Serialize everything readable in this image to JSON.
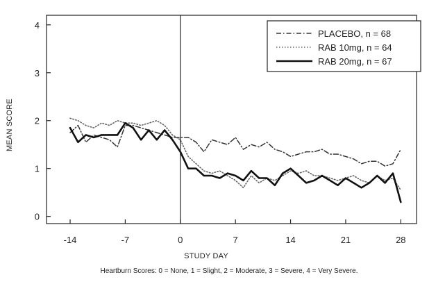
{
  "chart_data": {
    "type": "line",
    "title": "",
    "xlabel": "STUDY DAY",
    "ylabel": "MEAN SCORE",
    "xlim": [
      -17,
      30
    ],
    "ylim": [
      -0.15,
      4.2
    ],
    "xticks": [
      -14,
      -7,
      0,
      7,
      14,
      21,
      28
    ],
    "yticks": [
      0,
      1,
      2,
      3,
      4
    ],
    "reference_line_x": 0,
    "legend_position": "top-right",
    "footnote": "Heartburn Scores: 0 = None, 1 = Slight, 2 = Moderate, 3 = Severe, 4 = Very Severe.",
    "series": [
      {
        "name": "PLACEBO, n = 68",
        "line_style": "dash-dot",
        "color": "#333333",
        "x": [
          -14,
          -13,
          -12,
          -11,
          -10,
          -9,
          -8,
          -7,
          -6,
          -5,
          -4,
          -3,
          -2,
          -1,
          0,
          1,
          2,
          3,
          4,
          5,
          6,
          7,
          8,
          9,
          10,
          11,
          12,
          13,
          14,
          15,
          16,
          17,
          18,
          19,
          20,
          21,
          22,
          23,
          24,
          25,
          26,
          27,
          28
        ],
        "y": [
          1.75,
          1.9,
          1.55,
          1.7,
          1.65,
          1.6,
          1.45,
          1.9,
          1.9,
          1.85,
          1.8,
          1.75,
          1.7,
          1.65,
          1.65,
          1.65,
          1.55,
          1.35,
          1.6,
          1.55,
          1.5,
          1.65,
          1.4,
          1.5,
          1.45,
          1.55,
          1.4,
          1.35,
          1.25,
          1.3,
          1.35,
          1.35,
          1.4,
          1.3,
          1.3,
          1.25,
          1.2,
          1.1,
          1.15,
          1.15,
          1.05,
          1.1,
          1.4
        ]
      },
      {
        "name": "RAB 10mg, n = 64",
        "line_style": "dotted",
        "color": "#666666",
        "x": [
          -14,
          -13,
          -12,
          -11,
          -10,
          -9,
          -8,
          -7,
          -6,
          -5,
          -4,
          -3,
          -2,
          -1,
          0,
          1,
          2,
          3,
          4,
          5,
          6,
          7,
          8,
          9,
          10,
          11,
          12,
          13,
          14,
          15,
          16,
          17,
          18,
          19,
          20,
          21,
          22,
          23,
          24,
          25,
          26,
          27,
          28
        ],
        "y": [
          2.05,
          2.0,
          1.9,
          1.85,
          1.95,
          1.9,
          2.0,
          1.95,
          1.95,
          1.9,
          1.95,
          2.0,
          1.9,
          1.7,
          1.6,
          1.25,
          1.1,
          0.95,
          0.9,
          0.95,
          0.85,
          0.75,
          0.6,
          0.85,
          0.7,
          0.8,
          0.75,
          0.85,
          0.95,
          0.9,
          0.95,
          0.85,
          0.85,
          0.8,
          0.75,
          0.8,
          0.85,
          0.75,
          0.7,
          0.85,
          0.75,
          0.8,
          0.55
        ]
      },
      {
        "name": "RAB 20mg, n = 67",
        "line_style": "solid",
        "color": "#111111",
        "x": [
          -14,
          -13,
          -12,
          -11,
          -10,
          -9,
          -8,
          -7,
          -6,
          -5,
          -4,
          -3,
          -2,
          -1,
          0,
          1,
          2,
          3,
          4,
          5,
          6,
          7,
          8,
          9,
          10,
          11,
          12,
          13,
          14,
          15,
          16,
          17,
          18,
          19,
          20,
          21,
          22,
          23,
          24,
          25,
          26,
          27,
          28
        ],
        "y": [
          1.85,
          1.55,
          1.7,
          1.65,
          1.7,
          1.7,
          1.7,
          1.95,
          1.85,
          1.6,
          1.8,
          1.6,
          1.8,
          1.6,
          1.35,
          1.0,
          1.0,
          0.85,
          0.85,
          0.8,
          0.9,
          0.85,
          0.75,
          0.95,
          0.8,
          0.8,
          0.65,
          0.9,
          1.0,
          0.85,
          0.7,
          0.75,
          0.85,
          0.75,
          0.65,
          0.8,
          0.7,
          0.6,
          0.7,
          0.85,
          0.7,
          0.9,
          0.3
        ]
      }
    ]
  }
}
